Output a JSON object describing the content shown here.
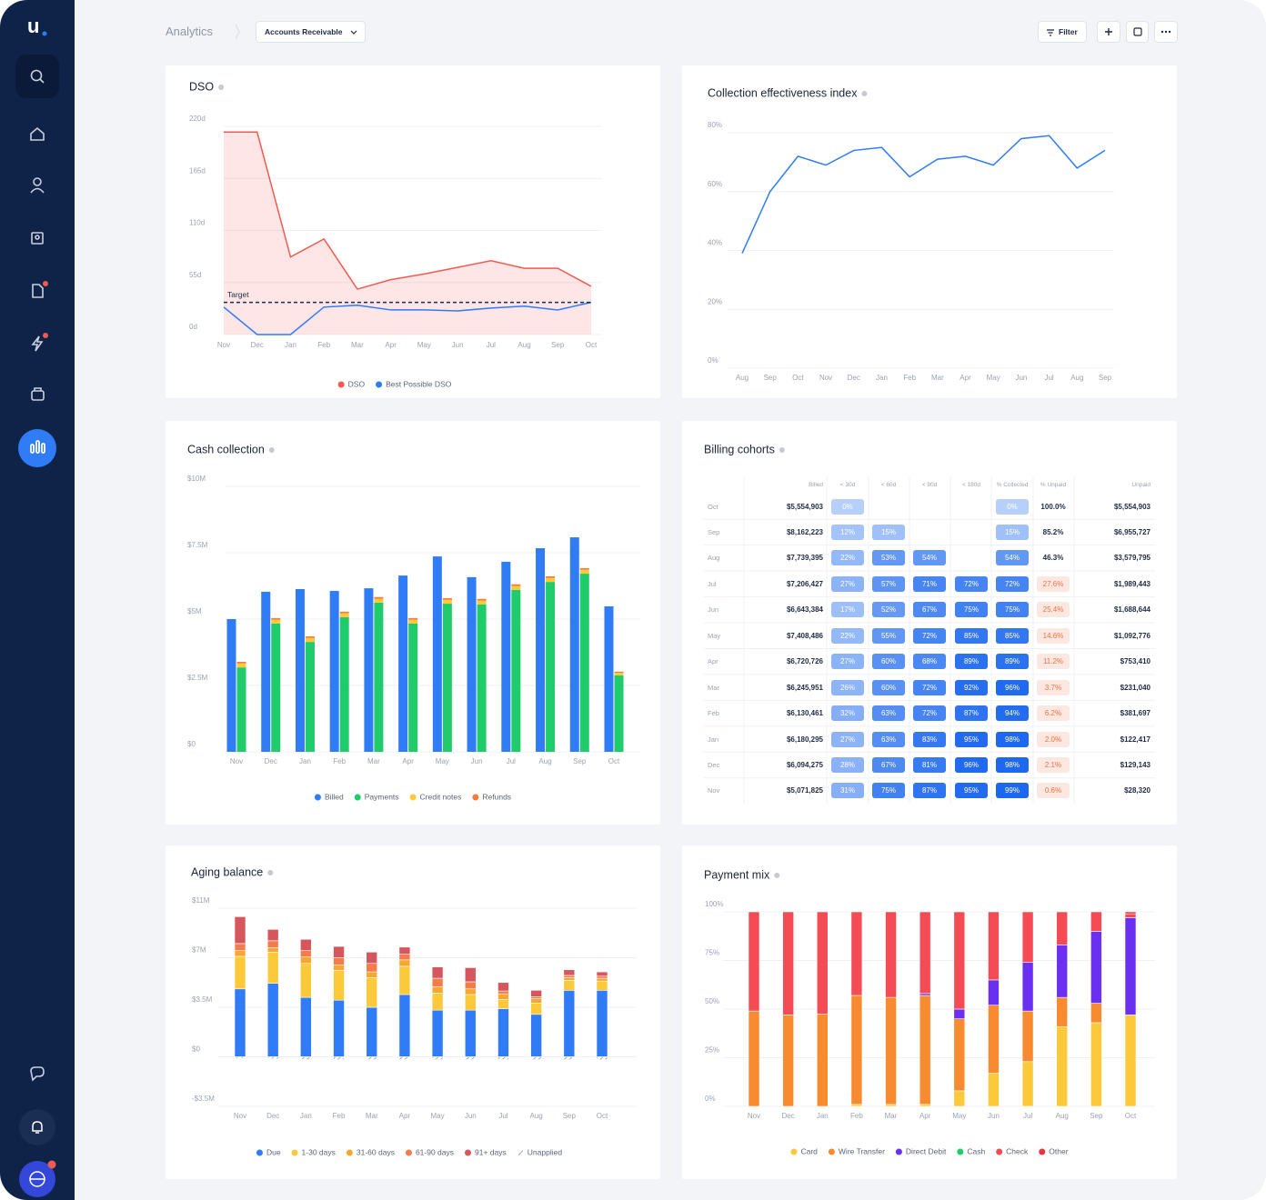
{
  "header": {
    "logo": "u",
    "breadcrumb": "Analytics",
    "dropdown": "Accounts Receivable",
    "filter": "Filter"
  },
  "chart_data": [
    {
      "type": "line",
      "title": "DSO",
      "categories": [
        "Nov",
        "Dec",
        "Jan",
        "Feb",
        "Mar",
        "Apr",
        "May",
        "Jun",
        "Jul",
        "Aug",
        "Sep",
        "Oct"
      ],
      "series": [
        {
          "name": "DSO",
          "color": "#f05a50",
          "area": true,
          "values": [
            214,
            214,
            82,
            101,
            48,
            58,
            64,
            71,
            78,
            70,
            70,
            51
          ]
        },
        {
          "name": "Best Possible DSO",
          "color": "#2f7cf6",
          "values": [
            29,
            0,
            0,
            29,
            31,
            26,
            26,
            25,
            28,
            30,
            26,
            34
          ]
        }
      ],
      "target": {
        "label": "Target",
        "value": 34
      },
      "ylim": [
        0,
        220
      ],
      "yticks": [
        {
          "value": 0,
          "label": "0d"
        },
        {
          "value": 55,
          "label": "55d"
        },
        {
          "value": 110,
          "label": "110d"
        },
        {
          "value": 165,
          "label": "165d"
        },
        {
          "value": 220,
          "label": "220d"
        }
      ],
      "grid": true
    },
    {
      "type": "line",
      "title": "Collection effectiveness index",
      "categories": [
        "Aug",
        "Sep",
        "Oct",
        "Nov",
        "Dec",
        "Jan",
        "Feb",
        "Mar",
        "Apr",
        "May",
        "Jun",
        "Jul",
        "Aug",
        "Sep"
      ],
      "color": "#2f7cf6",
      "values": [
        39,
        60,
        72,
        69,
        74,
        75,
        65,
        71,
        72,
        69,
        78,
        79,
        68,
        74
      ],
      "ylim": [
        0,
        80
      ],
      "yticks": [
        {
          "value": 0,
          "label": "0%"
        },
        {
          "value": 20,
          "label": "20%"
        },
        {
          "value": 40,
          "label": "40%"
        },
        {
          "value": 60,
          "label": "60%"
        },
        {
          "value": 80,
          "label": "80%"
        }
      ],
      "grid": true
    },
    {
      "type": "bar",
      "title": "Cash collection",
      "categories": [
        "Nov",
        "Dec",
        "Jan",
        "Feb",
        "Mar",
        "Apr",
        "May",
        "Jun",
        "Jul",
        "Aug",
        "Sep",
        "Oct"
      ],
      "series": [
        {
          "name": "Billed",
          "color": "#2f7cf6",
          "stack": 0,
          "values": [
            5000000,
            6030000,
            6130000,
            6060000,
            6160000,
            6640000,
            7360000,
            6580000,
            7160000,
            7670000,
            8080000,
            5480000
          ]
        },
        {
          "name": "Payments",
          "color": "#1fcb6a",
          "stack": 1,
          "values": [
            3180000,
            4830000,
            4140000,
            5070000,
            5620000,
            4830000,
            5580000,
            5550000,
            6100000,
            6400000,
            6710000,
            2880000
          ]
        },
        {
          "name": "Credit notes",
          "color": "#fcc93a",
          "stack": 1,
          "values": [
            150000,
            150000,
            150000,
            150000,
            150000,
            150000,
            150000,
            150000,
            150000,
            150000,
            150000,
            100000
          ]
        },
        {
          "name": "Refunds",
          "color": "#f57c3a",
          "stack": 1,
          "values": [
            60000,
            60000,
            60000,
            60000,
            60000,
            60000,
            60000,
            60000,
            60000,
            60000,
            60000,
            40000
          ]
        }
      ],
      "ylim": [
        0,
        10000000
      ],
      "yticks": [
        {
          "value": 0,
          "label": "$0"
        },
        {
          "value": 2500000,
          "label": "$2.5M"
        },
        {
          "value": 5000000,
          "label": "$5M"
        },
        {
          "value": 7500000,
          "label": "$7.5M"
        },
        {
          "value": 10000000,
          "label": "$10M"
        }
      ],
      "grid": true
    },
    {
      "type": "stacked_bar",
      "title": "Aging balance",
      "categories": [
        "Nov",
        "Dec",
        "Jan",
        "Feb",
        "Mar",
        "Apr",
        "May",
        "Jun",
        "Jul",
        "Aug",
        "Sep",
        "Oct"
      ],
      "series": [
        {
          "name": "Due",
          "color": "#2f7cf6",
          "values": [
            4800000,
            5200000,
            4200000,
            4000000,
            3500000,
            4400000,
            3300000,
            3300000,
            3400000,
            3000000,
            4700000,
            4700000
          ]
        },
        {
          "name": "1-30 days",
          "color": "#fcc93a",
          "values": [
            2300000,
            2200000,
            2400000,
            2100000,
            2100000,
            2000000,
            1200000,
            1100000,
            650000,
            800000,
            700000,
            650000
          ]
        },
        {
          "name": "31-60 days",
          "color": "#f8a630",
          "values": [
            400000,
            300000,
            450000,
            400000,
            400000,
            450000,
            450000,
            400000,
            400000,
            300000,
            200000,
            200000
          ]
        },
        {
          "name": "61-90 days",
          "color": "#f47c4b",
          "values": [
            500000,
            500000,
            450000,
            500000,
            600000,
            400000,
            600000,
            500000,
            200000,
            150000,
            150000,
            150000
          ]
        },
        {
          "name": "91+ days",
          "color": "#d5575d",
          "values": [
            1900000,
            800000,
            800000,
            800000,
            800000,
            500000,
            800000,
            1000000,
            600000,
            450000,
            400000,
            300000
          ]
        },
        {
          "name": "Unapplied",
          "color": "#9aa3b2",
          "hatch": true,
          "values": [
            -100000,
            -150000,
            -200000,
            -200000,
            -200000,
            -200000,
            -200000,
            -200000,
            -200000,
            -200000,
            -200000,
            -200000
          ]
        }
      ],
      "ylim": [
        -3500000,
        10500000
      ],
      "yticks": [
        {
          "value": -3500000,
          "label": "-$3.5M"
        },
        {
          "value": 0,
          "label": "$0"
        },
        {
          "value": 3500000,
          "label": "$3.5M"
        },
        {
          "value": 7000000,
          "label": "$7M"
        },
        {
          "value": 10500000,
          "label": "$11M"
        }
      ],
      "grid": true
    },
    {
      "type": "stacked_bar",
      "title": "Payment mix",
      "categories": [
        "Nov",
        "Dec",
        "Jan",
        "Feb",
        "Mar",
        "Apr",
        "May",
        "Jun",
        "Jul",
        "Aug",
        "Sep",
        "Oct"
      ],
      "series": [
        {
          "name": "Card",
          "color": "#fcc93a",
          "values": [
            0,
            0,
            0,
            1,
            1,
            1,
            8,
            17,
            23,
            41,
            43,
            47
          ]
        },
        {
          "name": "Wire Transfer",
          "color": "#f88a2f",
          "values": [
            49,
            47,
            47.5,
            56,
            55,
            56,
            37,
            35,
            26,
            15,
            10,
            0
          ]
        },
        {
          "name": "Direct Debit",
          "color": "#6a2ff0",
          "values": [
            0,
            0,
            0,
            0,
            0,
            1,
            5,
            13,
            25,
            27,
            37,
            50
          ]
        },
        {
          "name": "Cash",
          "color": "#1fcb6a",
          "values": [
            0,
            0,
            0,
            0,
            0,
            0,
            0,
            0,
            0,
            0,
            0,
            0
          ]
        },
        {
          "name": "Check",
          "color": "#f54b55",
          "values": [
            51,
            53,
            52.5,
            43,
            44,
            42,
            50,
            35,
            26,
            17,
            10,
            2
          ]
        },
        {
          "name": "Other",
          "color": "#e8353f",
          "values": [
            0,
            0,
            0,
            0,
            0,
            0,
            0,
            0,
            0,
            0,
            0,
            1
          ]
        }
      ],
      "ylim": [
        0,
        100
      ],
      "yticks": [
        {
          "value": 0,
          "label": "0%"
        },
        {
          "value": 25,
          "label": "25%"
        },
        {
          "value": 50,
          "label": "50%"
        },
        {
          "value": 75,
          "label": "75%"
        },
        {
          "value": 100,
          "label": "100%"
        }
      ],
      "grid": true
    }
  ],
  "billing_cohorts": {
    "title": "Billing cohorts",
    "columns": [
      "Billed",
      "< 30d",
      "< 60d",
      "< 90d",
      "< 180d",
      "% Collected",
      "% Unpaid",
      "Unpaid"
    ],
    "rows": [
      {
        "month": "Oct",
        "cells": [
          "$5,554,903",
          "0%",
          null,
          null,
          null,
          "0%",
          "100.0%",
          "$5,554,903"
        ]
      },
      {
        "month": "Sep",
        "cells": [
          "$8,162,223",
          "12%",
          "15%",
          null,
          null,
          "15%",
          "85.2%",
          "$6,955,727"
        ]
      },
      {
        "month": "Aug",
        "cells": [
          "$7,739,395",
          "22%",
          "53%",
          "54%",
          null,
          "54%",
          "46.3%",
          "$3,579,795"
        ]
      },
      {
        "month": "Jul",
        "cells": [
          "$7,206,427",
          "27%",
          "57%",
          "71%",
          "72%",
          "72%",
          "27.6%",
          "$1,989,443"
        ]
      },
      {
        "month": "Jun",
        "cells": [
          "$6,643,384",
          "17%",
          "52%",
          "67%",
          "75%",
          "75%",
          "25.4%",
          "$1,688,644"
        ]
      },
      {
        "month": "May",
        "cells": [
          "$7,408,486",
          "22%",
          "55%",
          "72%",
          "85%",
          "85%",
          "14.6%",
          "$1,092,776"
        ]
      },
      {
        "month": "Apr",
        "cells": [
          "$6,720,726",
          "27%",
          "60%",
          "68%",
          "89%",
          "89%",
          "11.2%",
          "$753,410"
        ]
      },
      {
        "month": "Mar",
        "cells": [
          "$6,245,951",
          "26%",
          "60%",
          "72%",
          "92%",
          "96%",
          "3.7%",
          "$231,040"
        ]
      },
      {
        "month": "Feb",
        "cells": [
          "$6,130,461",
          "32%",
          "63%",
          "72%",
          "87%",
          "94%",
          "6.2%",
          "$381,697"
        ]
      },
      {
        "month": "Jan",
        "cells": [
          "$6,180,295",
          "27%",
          "63%",
          "83%",
          "95%",
          "98%",
          "2.0%",
          "$122,417"
        ]
      },
      {
        "month": "Dec",
        "cells": [
          "$6,094,275",
          "28%",
          "67%",
          "81%",
          "96%",
          "98%",
          "2.1%",
          "$129,143"
        ]
      },
      {
        "month": "Nov",
        "cells": [
          "$5,071,825",
          "31%",
          "75%",
          "87%",
          "95%",
          "99%",
          "0.6%",
          "$28,320"
        ]
      }
    ]
  }
}
